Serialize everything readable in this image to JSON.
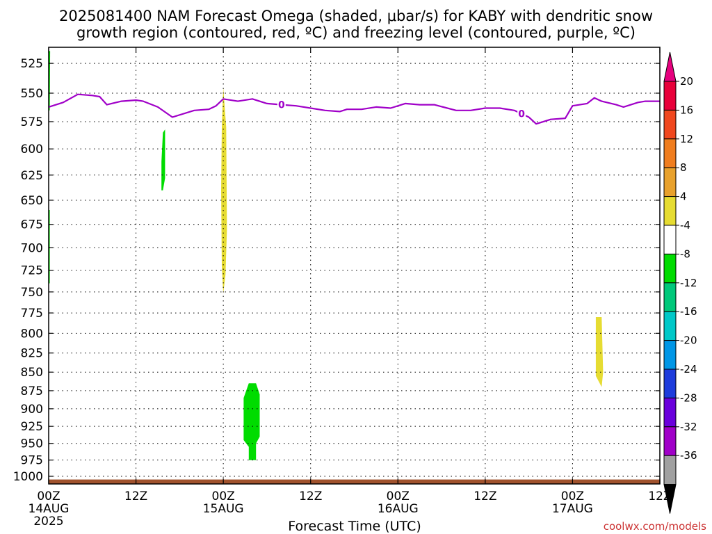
{
  "title_line1": "2025081400 NAM Forecast Omega (shaded, μbar/s) for KABY with dendritic snow",
  "title_line2": "growth region (contoured, red, ºC) and freezing level (contoured, purple, ºC)",
  "credit": "coolwx.com/models",
  "colorbar_ticks": [
    "20",
    "16",
    "12",
    "8",
    "4",
    "-4",
    "-8",
    "-12",
    "-16",
    "-20",
    "-24",
    "-28",
    "-32",
    "-36"
  ],
  "colorbar_colors": [
    "#e8003a",
    "#f0471e",
    "#f07d1e",
    "#e8a12c",
    "#e6dc32",
    "#ffffff",
    "#00dc00",
    "#00c87a",
    "#00c8c8",
    "#0096e6",
    "#1e3cdc",
    "#6a00dc",
    "#a000c8",
    "#a0a0a0"
  ],
  "colorbar_top_arrow_color": "#e6007e",
  "colorbar_bottom_arrow_color": "#000000",
  "chart_data": {
    "type": "time-height",
    "title": "2025081400 NAM Forecast Omega (shaded, μbar/s) for KABY with dendritic snow growth region (contoured, red, ºC) and freezing level (contoured, purple, ºC)",
    "xlabel": "Forecast Time (UTC)",
    "ylabel": "",
    "x_unit": "hours from 2025-08-14 00Z",
    "x_range": [
      0,
      84
    ],
    "y_range": [
      512,
      1012
    ],
    "y_scale": "log",
    "y_ticks": [
      525,
      550,
      575,
      600,
      625,
      650,
      675,
      700,
      725,
      750,
      775,
      800,
      825,
      850,
      875,
      900,
      925,
      950,
      975,
      1000
    ],
    "x_ticks": [
      {
        "h": 0,
        "label": "00Z",
        "date": "14AUG",
        "year": "2025"
      },
      {
        "h": 12,
        "label": "12Z",
        "date": "",
        "year": ""
      },
      {
        "h": 24,
        "label": "00Z",
        "date": "15AUG",
        "year": ""
      },
      {
        "h": 36,
        "label": "12Z",
        "date": "",
        "year": ""
      },
      {
        "h": 48,
        "label": "00Z",
        "date": "16AUG",
        "year": ""
      },
      {
        "h": 60,
        "label": "12Z",
        "date": "",
        "year": ""
      },
      {
        "h": 72,
        "label": "00Z",
        "date": "17AUG",
        "year": ""
      },
      {
        "h": 84,
        "label": "12Z",
        "date": "",
        "year": ""
      }
    ],
    "grid": true,
    "freezing_level": {
      "name": "freezing level",
      "color": "#a000c8",
      "label": "0",
      "label_hours": [
        32,
        65
      ],
      "points": [
        [
          0,
          562
        ],
        [
          2,
          558
        ],
        [
          4,
          551
        ],
        [
          6,
          552
        ],
        [
          7,
          553
        ],
        [
          8,
          560
        ],
        [
          10,
          557
        ],
        [
          12,
          556
        ],
        [
          13,
          557
        ],
        [
          15,
          562
        ],
        [
          17,
          571
        ],
        [
          20,
          565
        ],
        [
          22,
          564
        ],
        [
          23,
          561
        ],
        [
          24,
          555
        ],
        [
          26,
          557
        ],
        [
          28,
          555
        ],
        [
          30,
          559
        ],
        [
          32,
          560
        ],
        [
          34,
          561
        ],
        [
          36,
          563
        ],
        [
          38,
          565
        ],
        [
          40,
          566
        ],
        [
          41,
          564
        ],
        [
          43,
          564
        ],
        [
          45,
          562
        ],
        [
          47,
          563
        ],
        [
          49,
          559
        ],
        [
          51,
          560
        ],
        [
          53,
          560
        ],
        [
          56,
          565
        ],
        [
          58,
          565
        ],
        [
          60,
          563
        ],
        [
          62,
          563
        ],
        [
          64,
          565
        ],
        [
          66,
          571
        ],
        [
          67,
          577
        ],
        [
          69,
          573
        ],
        [
          71,
          572
        ],
        [
          72,
          561
        ],
        [
          74,
          559
        ],
        [
          75,
          554
        ],
        [
          76,
          557
        ],
        [
          78,
          560
        ],
        [
          79,
          562
        ],
        [
          81,
          558
        ],
        [
          82,
          557
        ],
        [
          84,
          557
        ]
      ]
    },
    "omega_regions": [
      {
        "color": "#00dc00",
        "range": "-8 to -4",
        "points": [
          [
            0,
            515
          ],
          [
            0.2,
            515
          ],
          [
            0.15,
            565
          ],
          [
            0,
            565
          ]
        ]
      },
      {
        "color": "#00dc00",
        "range": "-8 to -4",
        "points": [
          [
            0,
            660
          ],
          [
            0.15,
            660
          ],
          [
            0.15,
            740
          ],
          [
            0,
            740
          ]
        ]
      },
      {
        "color": "#00dc00",
        "range": "-8 to -4",
        "points": [
          [
            15.7,
            585
          ],
          [
            16,
            582
          ],
          [
            16,
            628
          ],
          [
            15.7,
            640
          ],
          [
            15.5,
            640
          ],
          [
            15.5,
            612
          ]
        ]
      },
      {
        "color": "#e6dc32",
        "range": "4 to 8",
        "points": [
          [
            24,
            545
          ],
          [
            24.4,
            580
          ],
          [
            24.5,
            680
          ],
          [
            24.3,
            730
          ],
          [
            24,
            752
          ],
          [
            23.8,
            720
          ],
          [
            23.7,
            640
          ],
          [
            23.8,
            580
          ]
        ]
      },
      {
        "color": "#00dc00",
        "range": "-8 to -4",
        "points": [
          [
            27.5,
            865
          ],
          [
            28.5,
            865
          ],
          [
            29,
            880
          ],
          [
            29,
            940
          ],
          [
            28.5,
            950
          ],
          [
            28.5,
            975
          ],
          [
            27.5,
            975
          ],
          [
            27.5,
            955
          ],
          [
            26.8,
            945
          ],
          [
            26.8,
            885
          ]
        ]
      },
      {
        "color": "#e6dc32",
        "range": "4 to 8",
        "points": [
          [
            75.2,
            780
          ],
          [
            76,
            780
          ],
          [
            76.2,
            850
          ],
          [
            76,
            870
          ],
          [
            75.2,
            855
          ]
        ]
      }
    ],
    "terrain": {
      "name": "ground",
      "color": "#a0522d",
      "surface_pressure": 1005
    }
  },
  "axis_labels": {
    "x": "Forecast Time (UTC)"
  }
}
